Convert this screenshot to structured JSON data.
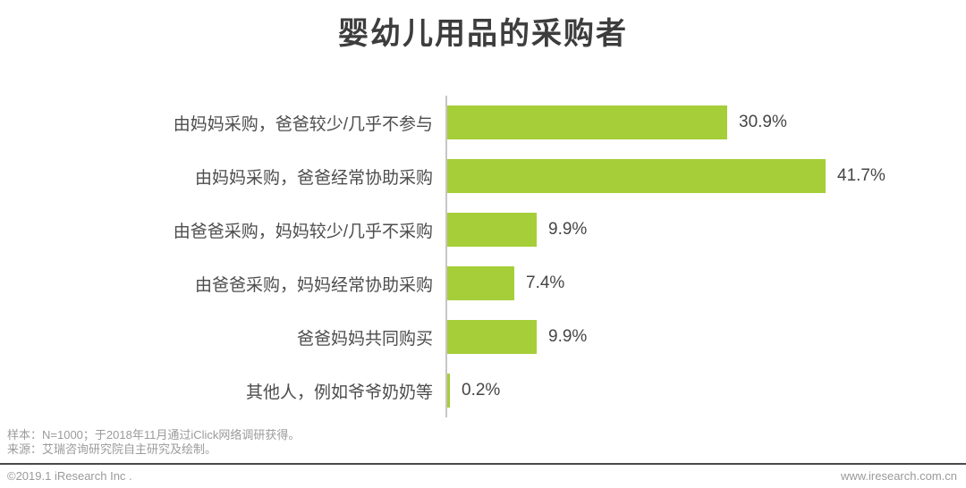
{
  "title": "婴幼儿用品的采购者",
  "chart_data": {
    "type": "bar",
    "orientation": "horizontal",
    "title": "婴幼儿用品的采购者",
    "categories": [
      "由妈妈采购，爸爸较少/几乎不参与",
      "由妈妈采购，爸爸经常协助采购",
      "由爸爸采购，妈妈较少/几乎不采购",
      "由爸爸采购，妈妈经常协助采购",
      "爸爸妈妈共同购买",
      "其他人，例如爷爷奶奶等"
    ],
    "values": [
      30.9,
      41.7,
      9.9,
      7.4,
      9.9,
      0.2
    ],
    "value_labels": [
      "30.9%",
      "41.7%",
      "9.9%",
      "7.4%",
      "9.9%",
      "0.2%"
    ],
    "unit": "%",
    "xlim": [
      0,
      45
    ],
    "bar_color": "#a6ce39",
    "grid": false,
    "legend": null
  },
  "footer": {
    "sample_note": "样本：N=1000；于2018年11月通过iClick网络调研获得。",
    "source_note": "来源：艾瑞咨询研究院自主研究及绘制。"
  },
  "bottom_bar": {
    "copyright": "©2019.1 iResearch Inc .",
    "website": "www.iresearch.com.cn"
  }
}
